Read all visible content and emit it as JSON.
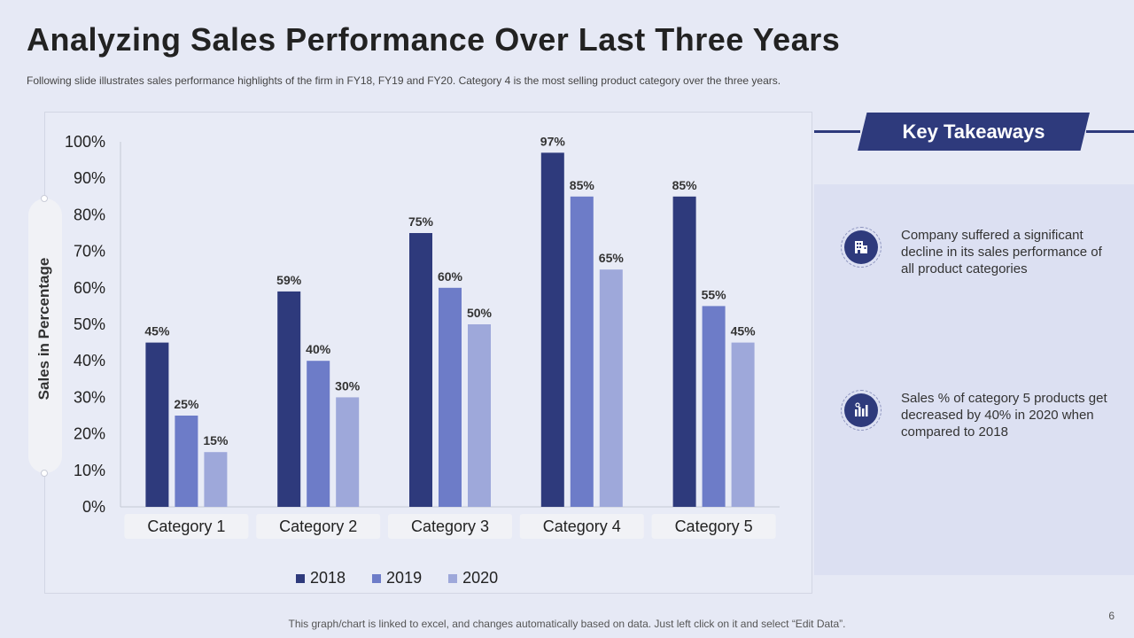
{
  "title": "Analyzing Sales Performance Over Last Three Years",
  "subtitle": "Following slide illustrates sales performance  highlights of the firm in FY18, FY19 and FY20. Category 4 is the most selling product category over the three years.",
  "chart_data": {
    "type": "bar",
    "categories": [
      "Category 1",
      "Category 2",
      "Category 3",
      "Category 4",
      "Category 5"
    ],
    "series": [
      {
        "name": "2018",
        "values": [
          45,
          59,
          75,
          97,
          85
        ],
        "color": "#2e3a7c"
      },
      {
        "name": "2019",
        "values": [
          25,
          40,
          60,
          85,
          55
        ],
        "color": "#6d7cc8"
      },
      {
        "name": "2020",
        "values": [
          15,
          30,
          50,
          65,
          45
        ],
        "color": "#9ea8da"
      }
    ],
    "ylabel": "Sales in Percentage",
    "ylim": [
      0,
      100
    ],
    "yticks": [
      "0%",
      "10%",
      "20%",
      "30%",
      "40%",
      "50%",
      "60%",
      "70%",
      "80%",
      "90%",
      "100%"
    ],
    "value_suffix": "%",
    "legend_position": "bottom"
  },
  "takeaways": {
    "heading": "Key Takeaways",
    "items": [
      {
        "icon": "building-icon",
        "text": "Company suffered a significant decline in its sales performance of all product categories"
      },
      {
        "icon": "bar-chart-icon",
        "text": "Sales % of category 5 products get decreased by 40% in 2020 when compared to 2018"
      }
    ]
  },
  "footer": "This graph/chart is linked to excel, and changes automatically based on data. Just left click on it and select “Edit Data”.",
  "page_number": "6"
}
